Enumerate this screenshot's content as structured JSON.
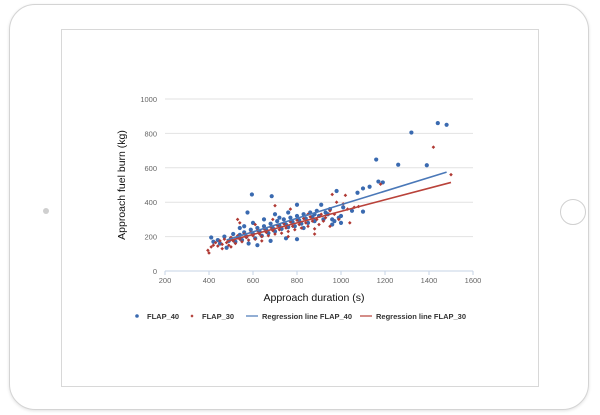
{
  "chart_data": {
    "type": "scatter",
    "xlabel": "Approach duration (s)",
    "ylabel": "Approach fuel burn (kg)",
    "xlim": [
      200,
      1600
    ],
    "ylim": [
      0,
      1000
    ],
    "xticks": [
      200,
      400,
      600,
      800,
      1000,
      1200,
      1400,
      1600
    ],
    "yticks": [
      0,
      200,
      400,
      600,
      800,
      1000
    ],
    "grid": "horizontal",
    "legend_position": "bottom",
    "series": [
      {
        "name": "FLAP_40",
        "kind": "scatter",
        "color": "#3a6ab0",
        "points": [
          [
            1320,
            805
          ],
          [
            1440,
            860
          ],
          [
            1480,
            850
          ],
          [
            1160,
            648
          ],
          [
            1260,
            618
          ],
          [
            1390,
            615
          ],
          [
            1170,
            520
          ],
          [
            1190,
            515
          ],
          [
            1130,
            490
          ],
          [
            1100,
            480
          ],
          [
            1075,
            455
          ],
          [
            980,
            465
          ],
          [
            1100,
            345
          ],
          [
            1000,
            280
          ],
          [
            595,
            445
          ],
          [
            685,
            435
          ],
          [
            800,
            385
          ],
          [
            575,
            340
          ],
          [
            410,
            195
          ],
          [
            680,
            175
          ],
          [
            800,
            185
          ],
          [
            750,
            190
          ],
          [
            620,
            150
          ],
          [
            480,
            135
          ],
          [
            940,
            330
          ],
          [
            960,
            300
          ],
          [
            420,
            170
          ],
          [
            440,
            180
          ],
          [
            450,
            160
          ],
          [
            470,
            200
          ],
          [
            490,
            175
          ],
          [
            500,
            190
          ],
          [
            510,
            215
          ],
          [
            520,
            170
          ],
          [
            530,
            195
          ],
          [
            540,
            210
          ],
          [
            550,
            180
          ],
          [
            560,
            225
          ],
          [
            570,
            200
          ],
          [
            580,
            160
          ],
          [
            590,
            240
          ],
          [
            600,
            215
          ],
          [
            610,
            190
          ],
          [
            620,
            250
          ],
          [
            630,
            230
          ],
          [
            640,
            205
          ],
          [
            650,
            260
          ],
          [
            660,
            240
          ],
          [
            670,
            220
          ],
          [
            680,
            275
          ],
          [
            690,
            250
          ],
          [
            700,
            230
          ],
          [
            710,
            290
          ],
          [
            720,
            265
          ],
          [
            730,
            245
          ],
          [
            740,
            300
          ],
          [
            750,
            270
          ],
          [
            760,
            255
          ],
          [
            770,
            310
          ],
          [
            780,
            285
          ],
          [
            790,
            260
          ],
          [
            800,
            320
          ],
          [
            810,
            295
          ],
          [
            820,
            275
          ],
          [
            830,
            330
          ],
          [
            840,
            305
          ],
          [
            850,
            280
          ],
          [
            860,
            340
          ],
          [
            870,
            315
          ],
          [
            880,
            290
          ],
          [
            890,
            350
          ],
          [
            900,
            320
          ],
          [
            910,
            385
          ],
          [
            920,
            300
          ],
          [
            930,
            340
          ],
          [
            950,
            360
          ],
          [
            970,
            290
          ],
          [
            990,
            310
          ],
          [
            1010,
            370
          ],
          [
            1050,
            350
          ],
          [
            1000,
            320
          ],
          [
            960,
            270
          ],
          [
            700,
            330
          ],
          [
            720,
            310
          ],
          [
            650,
            300
          ],
          [
            560,
            260
          ],
          [
            540,
            250
          ],
          [
            600,
            280
          ],
          [
            760,
            340
          ],
          [
            830,
            250
          ],
          [
            880,
            330
          ]
        ]
      },
      {
        "name": "FLAP_30",
        "kind": "scatter",
        "color": "#b03a34",
        "points": [
          [
            1420,
            720
          ],
          [
            1500,
            560
          ],
          [
            1180,
            505
          ],
          [
            1060,
            370
          ],
          [
            1040,
            280
          ],
          [
            395,
            120
          ],
          [
            400,
            105
          ],
          [
            700,
            380
          ],
          [
            960,
            445
          ],
          [
            1020,
            440
          ],
          [
            1010,
            390
          ],
          [
            880,
            215
          ],
          [
            920,
            290
          ],
          [
            410,
            140
          ],
          [
            420,
            150
          ],
          [
            430,
            165
          ],
          [
            440,
            145
          ],
          [
            450,
            175
          ],
          [
            460,
            155
          ],
          [
            470,
            185
          ],
          [
            480,
            165
          ],
          [
            490,
            150
          ],
          [
            500,
            195
          ],
          [
            510,
            175
          ],
          [
            520,
            160
          ],
          [
            530,
            205
          ],
          [
            540,
            185
          ],
          [
            550,
            170
          ],
          [
            560,
            215
          ],
          [
            570,
            195
          ],
          [
            580,
            180
          ],
          [
            590,
            225
          ],
          [
            600,
            205
          ],
          [
            610,
            185
          ],
          [
            620,
            235
          ],
          [
            630,
            215
          ],
          [
            640,
            200
          ],
          [
            650,
            245
          ],
          [
            660,
            225
          ],
          [
            670,
            205
          ],
          [
            680,
            255
          ],
          [
            690,
            235
          ],
          [
            700,
            215
          ],
          [
            710,
            265
          ],
          [
            720,
            240
          ],
          [
            730,
            220
          ],
          [
            740,
            275
          ],
          [
            750,
            250
          ],
          [
            760,
            230
          ],
          [
            770,
            285
          ],
          [
            780,
            260
          ],
          [
            790,
            240
          ],
          [
            800,
            295
          ],
          [
            810,
            270
          ],
          [
            820,
            250
          ],
          [
            830,
            305
          ],
          [
            840,
            280
          ],
          [
            850,
            260
          ],
          [
            860,
            315
          ],
          [
            870,
            290
          ],
          [
            890,
            300
          ],
          [
            900,
            270
          ],
          [
            910,
            330
          ],
          [
            930,
            310
          ],
          [
            950,
            350
          ],
          [
            970,
            330
          ],
          [
            990,
            300
          ],
          [
            1030,
            360
          ],
          [
            1080,
            375
          ],
          [
            980,
            400
          ],
          [
            530,
            300
          ],
          [
            540,
            280
          ],
          [
            610,
            270
          ],
          [
            690,
            300
          ],
          [
            770,
            360
          ],
          [
            850,
            330
          ],
          [
            760,
            200
          ],
          [
            640,
            175
          ],
          [
            500,
            140
          ],
          [
            460,
            130
          ],
          [
            880,
            245
          ],
          [
            950,
            260
          ]
        ]
      },
      {
        "name": "Regression line FLAP_40",
        "kind": "line",
        "color": "#4a78b8",
        "points": [
          [
            480,
            180
          ],
          [
            1480,
            575
          ]
        ]
      },
      {
        "name": "Regression line FLAP_30",
        "kind": "line",
        "color": "#b9423a",
        "points": [
          [
            480,
            172
          ],
          [
            1500,
            515
          ]
        ]
      }
    ]
  }
}
